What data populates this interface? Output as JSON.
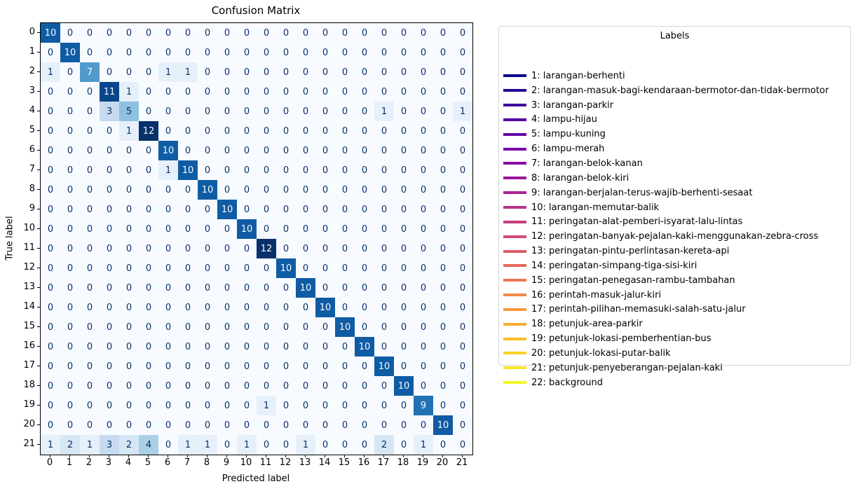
{
  "figure": {
    "title": "Confusion Matrix",
    "xlabel": "Predicted label",
    "ylabel": "True label"
  },
  "legend": {
    "title": "Labels",
    "entries": [
      {
        "label": "1: larangan-berhenti",
        "color": "#0d0887"
      },
      {
        "label": "2: larangan-masuk-bagi-kendaraan-bermotor-dan-tidak-bermotor",
        "color": "#250691"
      },
      {
        "label": "3: larangan-parkir",
        "color": "#3e049c"
      },
      {
        "label": "4: lampu-hijau",
        "color": "#5302a2"
      },
      {
        "label": "5: lampu-kuning",
        "color": "#6502a5"
      },
      {
        "label": "6: lampu-merah",
        "color": "#7804a7"
      },
      {
        "label": "7: larangan-belok-kanan",
        "color": "#8a0ea2"
      },
      {
        "label": "8: larangan-belok-kiri",
        "color": "#9c179e"
      },
      {
        "label": "9: larangan-berjalan-terus-wajib-berhenti-sesaat",
        "color": "#aa2594"
      },
      {
        "label": "10: larangan-memutar-balik",
        "color": "#b83289"
      },
      {
        "label": "11: peringatan-alat-pemberi-isyarat-lalu-lintas",
        "color": "#c5407e"
      },
      {
        "label": "12: peringatan-banyak-pejalan-kaki-menggunakan-zebra-cross",
        "color": "#d04e73"
      },
      {
        "label": "13: peringatan-pintu-perlintasan-kereta-api",
        "color": "#db5c68"
      },
      {
        "label": "14: peringatan-simpang-tiga-sisi-kiri",
        "color": "#e46a5d"
      },
      {
        "label": "15: peringatan-penegasan-rambu-tambahan",
        "color": "#ed7953"
      },
      {
        "label": "16: perintah-masuk-jalur-kiri",
        "color": "#f38948"
      },
      {
        "label": "17: perintah-pilihan-memasuki-salah-satu-jalur",
        "color": "#f99a3e"
      },
      {
        "label": "18: petunjuk-area-parkir",
        "color": "#fcab34"
      },
      {
        "label": "19: petunjuk-lokasi-pemberhentian-bus",
        "color": "#fcbe2c"
      },
      {
        "label": "20: petunjuk-lokasi-putar-balik",
        "color": "#fbd125"
      },
      {
        "label": "21: petunjuk-penyeberangan-pejalan-kaki",
        "color": "#f6e523"
      },
      {
        "label": "22: background",
        "color": "#f0f921"
      }
    ]
  },
  "chart_data": {
    "type": "heatmap",
    "title": "Confusion Matrix",
    "xlabel": "Predicted label",
    "ylabel": "True label",
    "x_ticks": [
      "0",
      "1",
      "2",
      "3",
      "4",
      "5",
      "6",
      "7",
      "8",
      "9",
      "10",
      "11",
      "12",
      "13",
      "14",
      "15",
      "16",
      "17",
      "18",
      "19",
      "20",
      "21"
    ],
    "y_ticks": [
      "0",
      "1",
      "2",
      "3",
      "4",
      "5",
      "6",
      "7",
      "8",
      "9",
      "10",
      "11",
      "12",
      "13",
      "14",
      "15",
      "16",
      "17",
      "18",
      "19",
      "20",
      "21"
    ],
    "vmin": 0,
    "vmax": 12,
    "colormap": "Blues",
    "colormap_anchors": [
      "#f7fbff",
      "#deebf7",
      "#c6dbef",
      "#9ecae1",
      "#6baed6",
      "#4292c6",
      "#2171b5",
      "#08519c",
      "#08306b"
    ],
    "cell_text_dark": "#08306b",
    "cell_text_light": "#f7fbff",
    "text_color_threshold": 6,
    "matrix": [
      [
        10,
        0,
        0,
        0,
        0,
        0,
        0,
        0,
        0,
        0,
        0,
        0,
        0,
        0,
        0,
        0,
        0,
        0,
        0,
        0,
        0,
        0
      ],
      [
        0,
        10,
        0,
        0,
        0,
        0,
        0,
        0,
        0,
        0,
        0,
        0,
        0,
        0,
        0,
        0,
        0,
        0,
        0,
        0,
        0,
        0
      ],
      [
        1,
        0,
        7,
        0,
        0,
        0,
        1,
        1,
        0,
        0,
        0,
        0,
        0,
        0,
        0,
        0,
        0,
        0,
        0,
        0,
        0,
        0
      ],
      [
        0,
        0,
        0,
        11,
        1,
        0,
        0,
        0,
        0,
        0,
        0,
        0,
        0,
        0,
        0,
        0,
        0,
        0,
        0,
        0,
        0,
        0
      ],
      [
        0,
        0,
        0,
        3,
        5,
        0,
        0,
        0,
        0,
        0,
        0,
        0,
        0,
        0,
        0,
        0,
        0,
        1,
        0,
        0,
        0,
        1
      ],
      [
        0,
        0,
        0,
        0,
        1,
        12,
        0,
        0,
        0,
        0,
        0,
        0,
        0,
        0,
        0,
        0,
        0,
        0,
        0,
        0,
        0,
        0
      ],
      [
        0,
        0,
        0,
        0,
        0,
        0,
        10,
        0,
        0,
        0,
        0,
        0,
        0,
        0,
        0,
        0,
        0,
        0,
        0,
        0,
        0,
        0
      ],
      [
        0,
        0,
        0,
        0,
        0,
        0,
        1,
        10,
        0,
        0,
        0,
        0,
        0,
        0,
        0,
        0,
        0,
        0,
        0,
        0,
        0,
        0
      ],
      [
        0,
        0,
        0,
        0,
        0,
        0,
        0,
        0,
        10,
        0,
        0,
        0,
        0,
        0,
        0,
        0,
        0,
        0,
        0,
        0,
        0,
        0
      ],
      [
        0,
        0,
        0,
        0,
        0,
        0,
        0,
        0,
        0,
        10,
        0,
        0,
        0,
        0,
        0,
        0,
        0,
        0,
        0,
        0,
        0,
        0
      ],
      [
        0,
        0,
        0,
        0,
        0,
        0,
        0,
        0,
        0,
        0,
        10,
        0,
        0,
        0,
        0,
        0,
        0,
        0,
        0,
        0,
        0,
        0
      ],
      [
        0,
        0,
        0,
        0,
        0,
        0,
        0,
        0,
        0,
        0,
        0,
        12,
        0,
        0,
        0,
        0,
        0,
        0,
        0,
        0,
        0,
        0
      ],
      [
        0,
        0,
        0,
        0,
        0,
        0,
        0,
        0,
        0,
        0,
        0,
        0,
        10,
        0,
        0,
        0,
        0,
        0,
        0,
        0,
        0,
        0
      ],
      [
        0,
        0,
        0,
        0,
        0,
        0,
        0,
        0,
        0,
        0,
        0,
        0,
        0,
        10,
        0,
        0,
        0,
        0,
        0,
        0,
        0,
        0
      ],
      [
        0,
        0,
        0,
        0,
        0,
        0,
        0,
        0,
        0,
        0,
        0,
        0,
        0,
        0,
        10,
        0,
        0,
        0,
        0,
        0,
        0,
        0
      ],
      [
        0,
        0,
        0,
        0,
        0,
        0,
        0,
        0,
        0,
        0,
        0,
        0,
        0,
        0,
        0,
        10,
        0,
        0,
        0,
        0,
        0,
        0
      ],
      [
        0,
        0,
        0,
        0,
        0,
        0,
        0,
        0,
        0,
        0,
        0,
        0,
        0,
        0,
        0,
        0,
        10,
        0,
        0,
        0,
        0,
        0
      ],
      [
        0,
        0,
        0,
        0,
        0,
        0,
        0,
        0,
        0,
        0,
        0,
        0,
        0,
        0,
        0,
        0,
        0,
        10,
        0,
        0,
        0,
        0
      ],
      [
        0,
        0,
        0,
        0,
        0,
        0,
        0,
        0,
        0,
        0,
        0,
        0,
        0,
        0,
        0,
        0,
        0,
        0,
        10,
        0,
        0,
        0
      ],
      [
        0,
        0,
        0,
        0,
        0,
        0,
        0,
        0,
        0,
        0,
        0,
        1,
        0,
        0,
        0,
        0,
        0,
        0,
        0,
        9,
        0,
        0
      ],
      [
        0,
        0,
        0,
        0,
        0,
        0,
        0,
        0,
        0,
        0,
        0,
        0,
        0,
        0,
        0,
        0,
        0,
        0,
        0,
        0,
        10,
        0
      ],
      [
        1,
        2,
        1,
        3,
        2,
        4,
        0,
        1,
        1,
        0,
        1,
        0,
        0,
        1,
        0,
        0,
        0,
        2,
        0,
        1,
        0,
        0
      ]
    ]
  }
}
